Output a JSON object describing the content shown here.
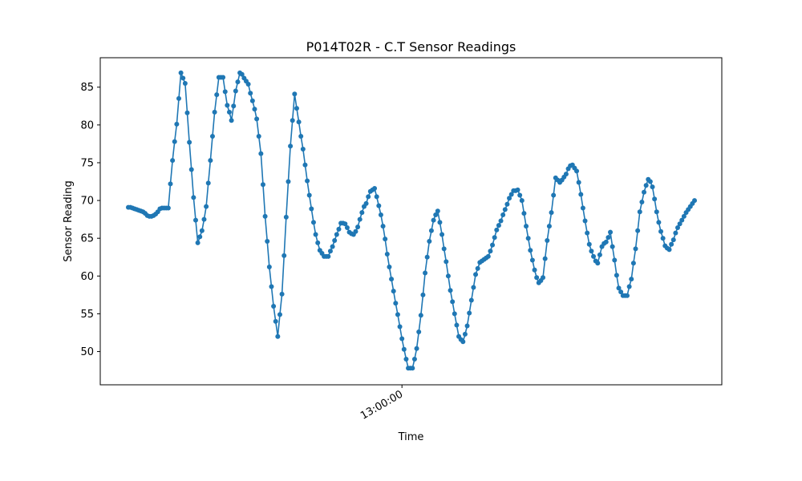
{
  "chart_data": {
    "type": "line",
    "title": "P014T02R - C.T Sensor Readings",
    "xlabel": "Time",
    "ylabel": "Sensor Reading",
    "x_tick_labels": [
      "13:00:00"
    ],
    "x_tick_index": 130,
    "y_ticks": [
      50,
      55,
      60,
      65,
      70,
      75,
      80,
      85
    ],
    "ylim": [
      45.6,
      88.9
    ],
    "grid": false,
    "color": "#1f77b4",
    "values": [
      69.1,
      69.1,
      69.0,
      68.9,
      68.8,
      68.7,
      68.6,
      68.5,
      68.3,
      68.0,
      67.9,
      67.9,
      68.0,
      68.2,
      68.5,
      68.9,
      69.0,
      69.0,
      69.0,
      69.0,
      72.2,
      75.3,
      77.8,
      80.1,
      83.5,
      86.9,
      86.2,
      85.5,
      81.6,
      77.7,
      74.1,
      70.4,
      67.4,
      64.4,
      65.2,
      66.0,
      67.5,
      69.2,
      72.3,
      75.3,
      78.5,
      81.7,
      84.0,
      86.3,
      86.3,
      86.3,
      84.4,
      82.6,
      81.7,
      80.6,
      82.5,
      84.5,
      85.7,
      86.9,
      86.7,
      86.2,
      85.8,
      85.4,
      84.2,
      83.2,
      82.1,
      80.8,
      78.5,
      76.2,
      72.1,
      67.9,
      64.6,
      61.2,
      58.6,
      56.0,
      54.0,
      52.0,
      54.9,
      57.6,
      62.7,
      67.8,
      72.5,
      77.2,
      80.6,
      84.1,
      82.2,
      80.4,
      78.5,
      76.8,
      74.7,
      72.6,
      70.7,
      68.9,
      67.1,
      65.5,
      64.4,
      63.4,
      63.0,
      62.6,
      62.6,
      62.6,
      63.3,
      63.9,
      64.7,
      65.5,
      66.2,
      67.0,
      67.0,
      66.9,
      66.4,
      65.8,
      65.6,
      65.5,
      65.9,
      66.5,
      67.5,
      68.4,
      69.2,
      69.6,
      70.5,
      71.2,
      71.4,
      71.6,
      70.5,
      69.3,
      68.1,
      66.6,
      64.9,
      62.9,
      61.2,
      59.6,
      58.0,
      56.4,
      54.9,
      53.3,
      51.7,
      50.3,
      49.0,
      47.8,
      47.8,
      47.8,
      49.0,
      50.4,
      52.6,
      54.8,
      57.5,
      60.4,
      62.5,
      64.6,
      66.0,
      67.4,
      68.1,
      68.6,
      67.1,
      65.5,
      63.6,
      61.9,
      60.0,
      58.1,
      56.6,
      55.0,
      53.5,
      52.0,
      51.6,
      51.3,
      52.3,
      53.4,
      55.1,
      56.8,
      58.5,
      60.2,
      61.0,
      61.8,
      62.0,
      62.2,
      62.4,
      62.6,
      63.3,
      64.1,
      65.1,
      66.1,
      66.7,
      67.3,
      68.1,
      68.8,
      69.5,
      70.3,
      70.8,
      71.3,
      71.3,
      71.4,
      70.7,
      70.0,
      68.3,
      66.6,
      65.0,
      63.4,
      62.1,
      60.8,
      59.8,
      59.1,
      59.4,
      59.8,
      62.3,
      64.7,
      66.6,
      68.4,
      70.7,
      73.0,
      72.7,
      72.4,
      72.7,
      73.1,
      73.5,
      74.2,
      74.6,
      74.7,
      74.3,
      73.9,
      72.4,
      70.8,
      69.0,
      67.3,
      65.7,
      64.2,
      63.3,
      62.6,
      62.0,
      61.7,
      62.8,
      63.9,
      64.3,
      64.5,
      65.1,
      65.8,
      63.9,
      62.1,
      60.1,
      58.4,
      57.9,
      57.4,
      57.4,
      57.4,
      58.6,
      59.6,
      61.7,
      63.6,
      66.0,
      68.5,
      69.8,
      71.1,
      72.0,
      72.8,
      72.5,
      71.8,
      70.2,
      68.5,
      67.1,
      65.9,
      65.0,
      64.0,
      63.7,
      63.5,
      64.2,
      64.8,
      65.7,
      66.4,
      66.9,
      67.4,
      67.9,
      68.4,
      68.8,
      69.2,
      69.6,
      70.0
    ]
  }
}
